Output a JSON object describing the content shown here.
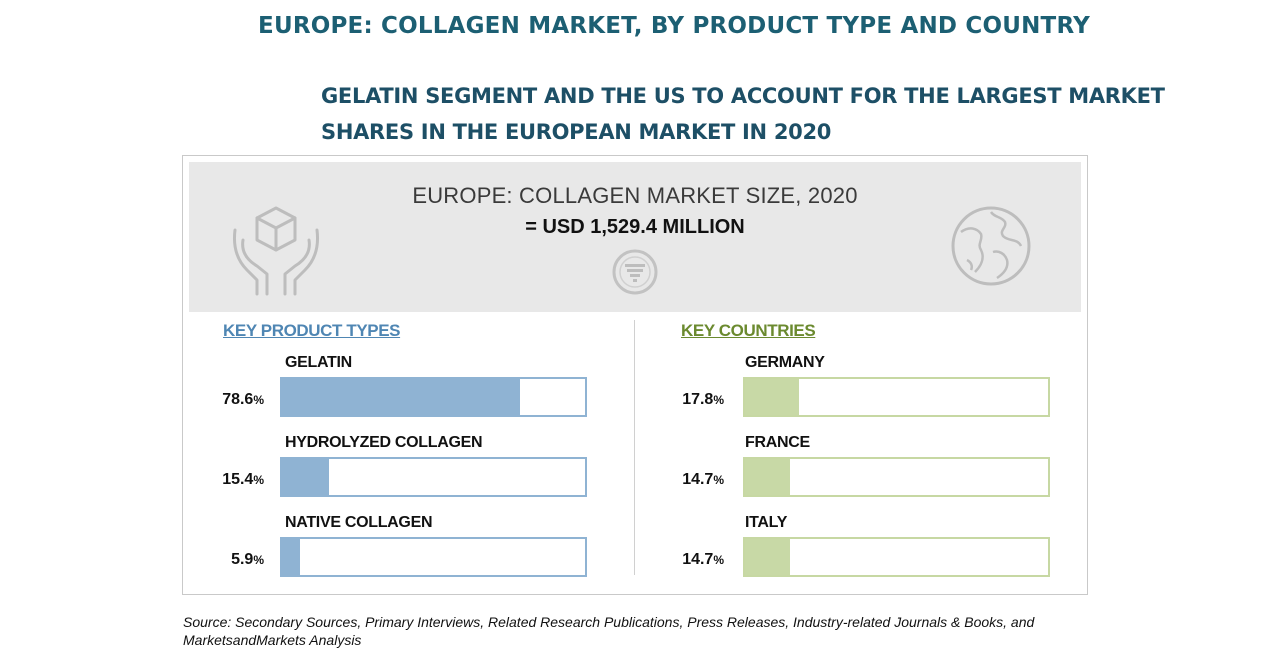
{
  "title": "EUROPE: COLLAGEN MARKET, BY PRODUCT TYPE AND COUNTRY",
  "subtitle_lines": [
    "GELATIN SEGMENT AND THE US TO ACCOUNT FOR THE LARGEST MARKET",
    "SHARES IN THE EUROPEAN MARKET IN 2020"
  ],
  "banner": {
    "title": "EUROPE: COLLAGEN MARKET SIZE, 2020",
    "value": "= USD 1,529.4 MILLION"
  },
  "colors": {
    "product_bar": "#8fb3d3",
    "country_bar": "#c8d9a6",
    "title": "#1c5f73"
  },
  "icons": [
    "hands-box-icon",
    "funnel-icon",
    "globe-icon"
  ],
  "chart_data": [
    {
      "type": "bar",
      "title": "KEY PRODUCT TYPES",
      "categories": [
        "GELATIN",
        "HYDROLYZED COLLAGEN",
        "NATIVE COLLAGEN"
      ],
      "values": [
        78.6,
        15.4,
        5.9
      ],
      "value_labels": [
        "78.6",
        "15.4",
        "5.9"
      ],
      "unit": "%",
      "xlim": [
        0,
        100
      ]
    },
    {
      "type": "bar",
      "title": "KEY COUNTRIES",
      "categories": [
        "GERMANY",
        "FRANCE",
        "ITALY"
      ],
      "values": [
        17.8,
        14.7,
        14.7
      ],
      "value_labels": [
        "17.8",
        "14.7",
        "14.7"
      ],
      "unit": "%",
      "xlim": [
        0,
        100
      ]
    }
  ],
  "source": "Source: Secondary Sources, Primary Interviews, Related Research Publications, Press Releases, Industry-related Journals & Books, and MarketsandMarkets Analysis"
}
